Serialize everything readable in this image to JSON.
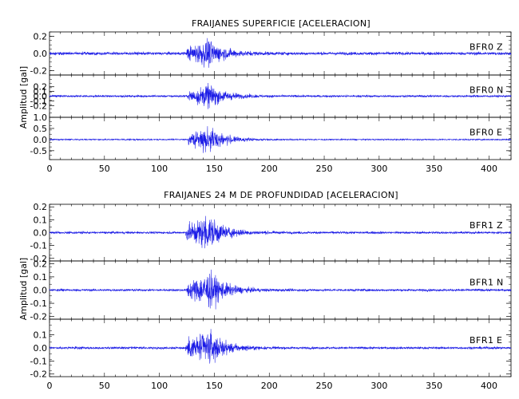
{
  "chart_data": [
    {
      "type": "line",
      "title": "FRAIJANES SUPERFICIE [ACELERACION]",
      "ylabel": "Amplitud [gal]",
      "xlabel": "",
      "xlim": [
        0,
        420
      ],
      "x_ticks": [
        "0",
        "50",
        "100",
        "150",
        "200",
        "250",
        "300",
        "350",
        "400"
      ],
      "panels": [
        {
          "name": "BFR0 Z",
          "label_station": "BFR0",
          "label_comp": "Z",
          "ylim": [
            -0.25,
            0.25
          ],
          "y_ticks": [
            "0.2",
            "0.0",
            "-0.2"
          ],
          "noise": 0.012,
          "peak": 0.22,
          "onset": 125,
          "peak_time": 145
        },
        {
          "name": "BFR0 N",
          "label_station": "BFR0",
          "label_comp": "N",
          "ylim": [
            -0.45,
            0.45
          ],
          "y_ticks": [
            "0.2",
            "0.1",
            "0.0",
            "-0.1",
            "-0.2"
          ],
          "noise": 0.015,
          "peak": 0.35,
          "onset": 126,
          "peak_time": 146
        },
        {
          "name": "BFR0 E",
          "label_station": "BFR0",
          "label_comp": "E",
          "ylim": [
            -0.9,
            1.0
          ],
          "y_ticks": [
            "1.0",
            "0.5",
            "0.0",
            "-0.5"
          ],
          "noise": 0.02,
          "peak": 0.85,
          "onset": 126,
          "peak_time": 146
        }
      ]
    },
    {
      "type": "line",
      "title": "FRAIJANES 24 M DE PROFUNDIDAD [ACELERACION]",
      "ylabel": "Amplitud [gal]",
      "xlabel": "",
      "xlim": [
        0,
        420
      ],
      "x_ticks": [
        "0",
        "50",
        "100",
        "150",
        "200",
        "250",
        "300",
        "350",
        "400"
      ],
      "panels": [
        {
          "name": "BFR1 Z",
          "label_station": "BFR1",
          "label_comp": "Z",
          "ylim": [
            -0.22,
            0.22
          ],
          "y_ticks": [
            "0.2",
            "0.1",
            "0.0",
            "-0.1",
            "-0.2"
          ],
          "noise": 0.006,
          "peak": 0.2,
          "onset": 124,
          "peak_time": 145
        },
        {
          "name": "BFR1 N",
          "label_station": "BFR1",
          "label_comp": "N",
          "ylim": [
            -0.22,
            0.22
          ],
          "y_ticks": [
            "0.2",
            "0.1",
            "0.0",
            "-0.1",
            "-0.2"
          ],
          "noise": 0.006,
          "peak": 0.2,
          "onset": 125,
          "peak_time": 146
        },
        {
          "name": "BFR1 E",
          "label_station": "BFR1",
          "label_comp": "E",
          "ylim": [
            -0.22,
            0.22
          ],
          "y_ticks": [
            "0.1",
            "0.0",
            "-0.1",
            "-0.2"
          ],
          "noise": 0.006,
          "peak": 0.19,
          "onset": 124,
          "peak_time": 145
        }
      ]
    }
  ],
  "colors": {
    "trace": "#1a1ae6",
    "axis": "#000000"
  }
}
